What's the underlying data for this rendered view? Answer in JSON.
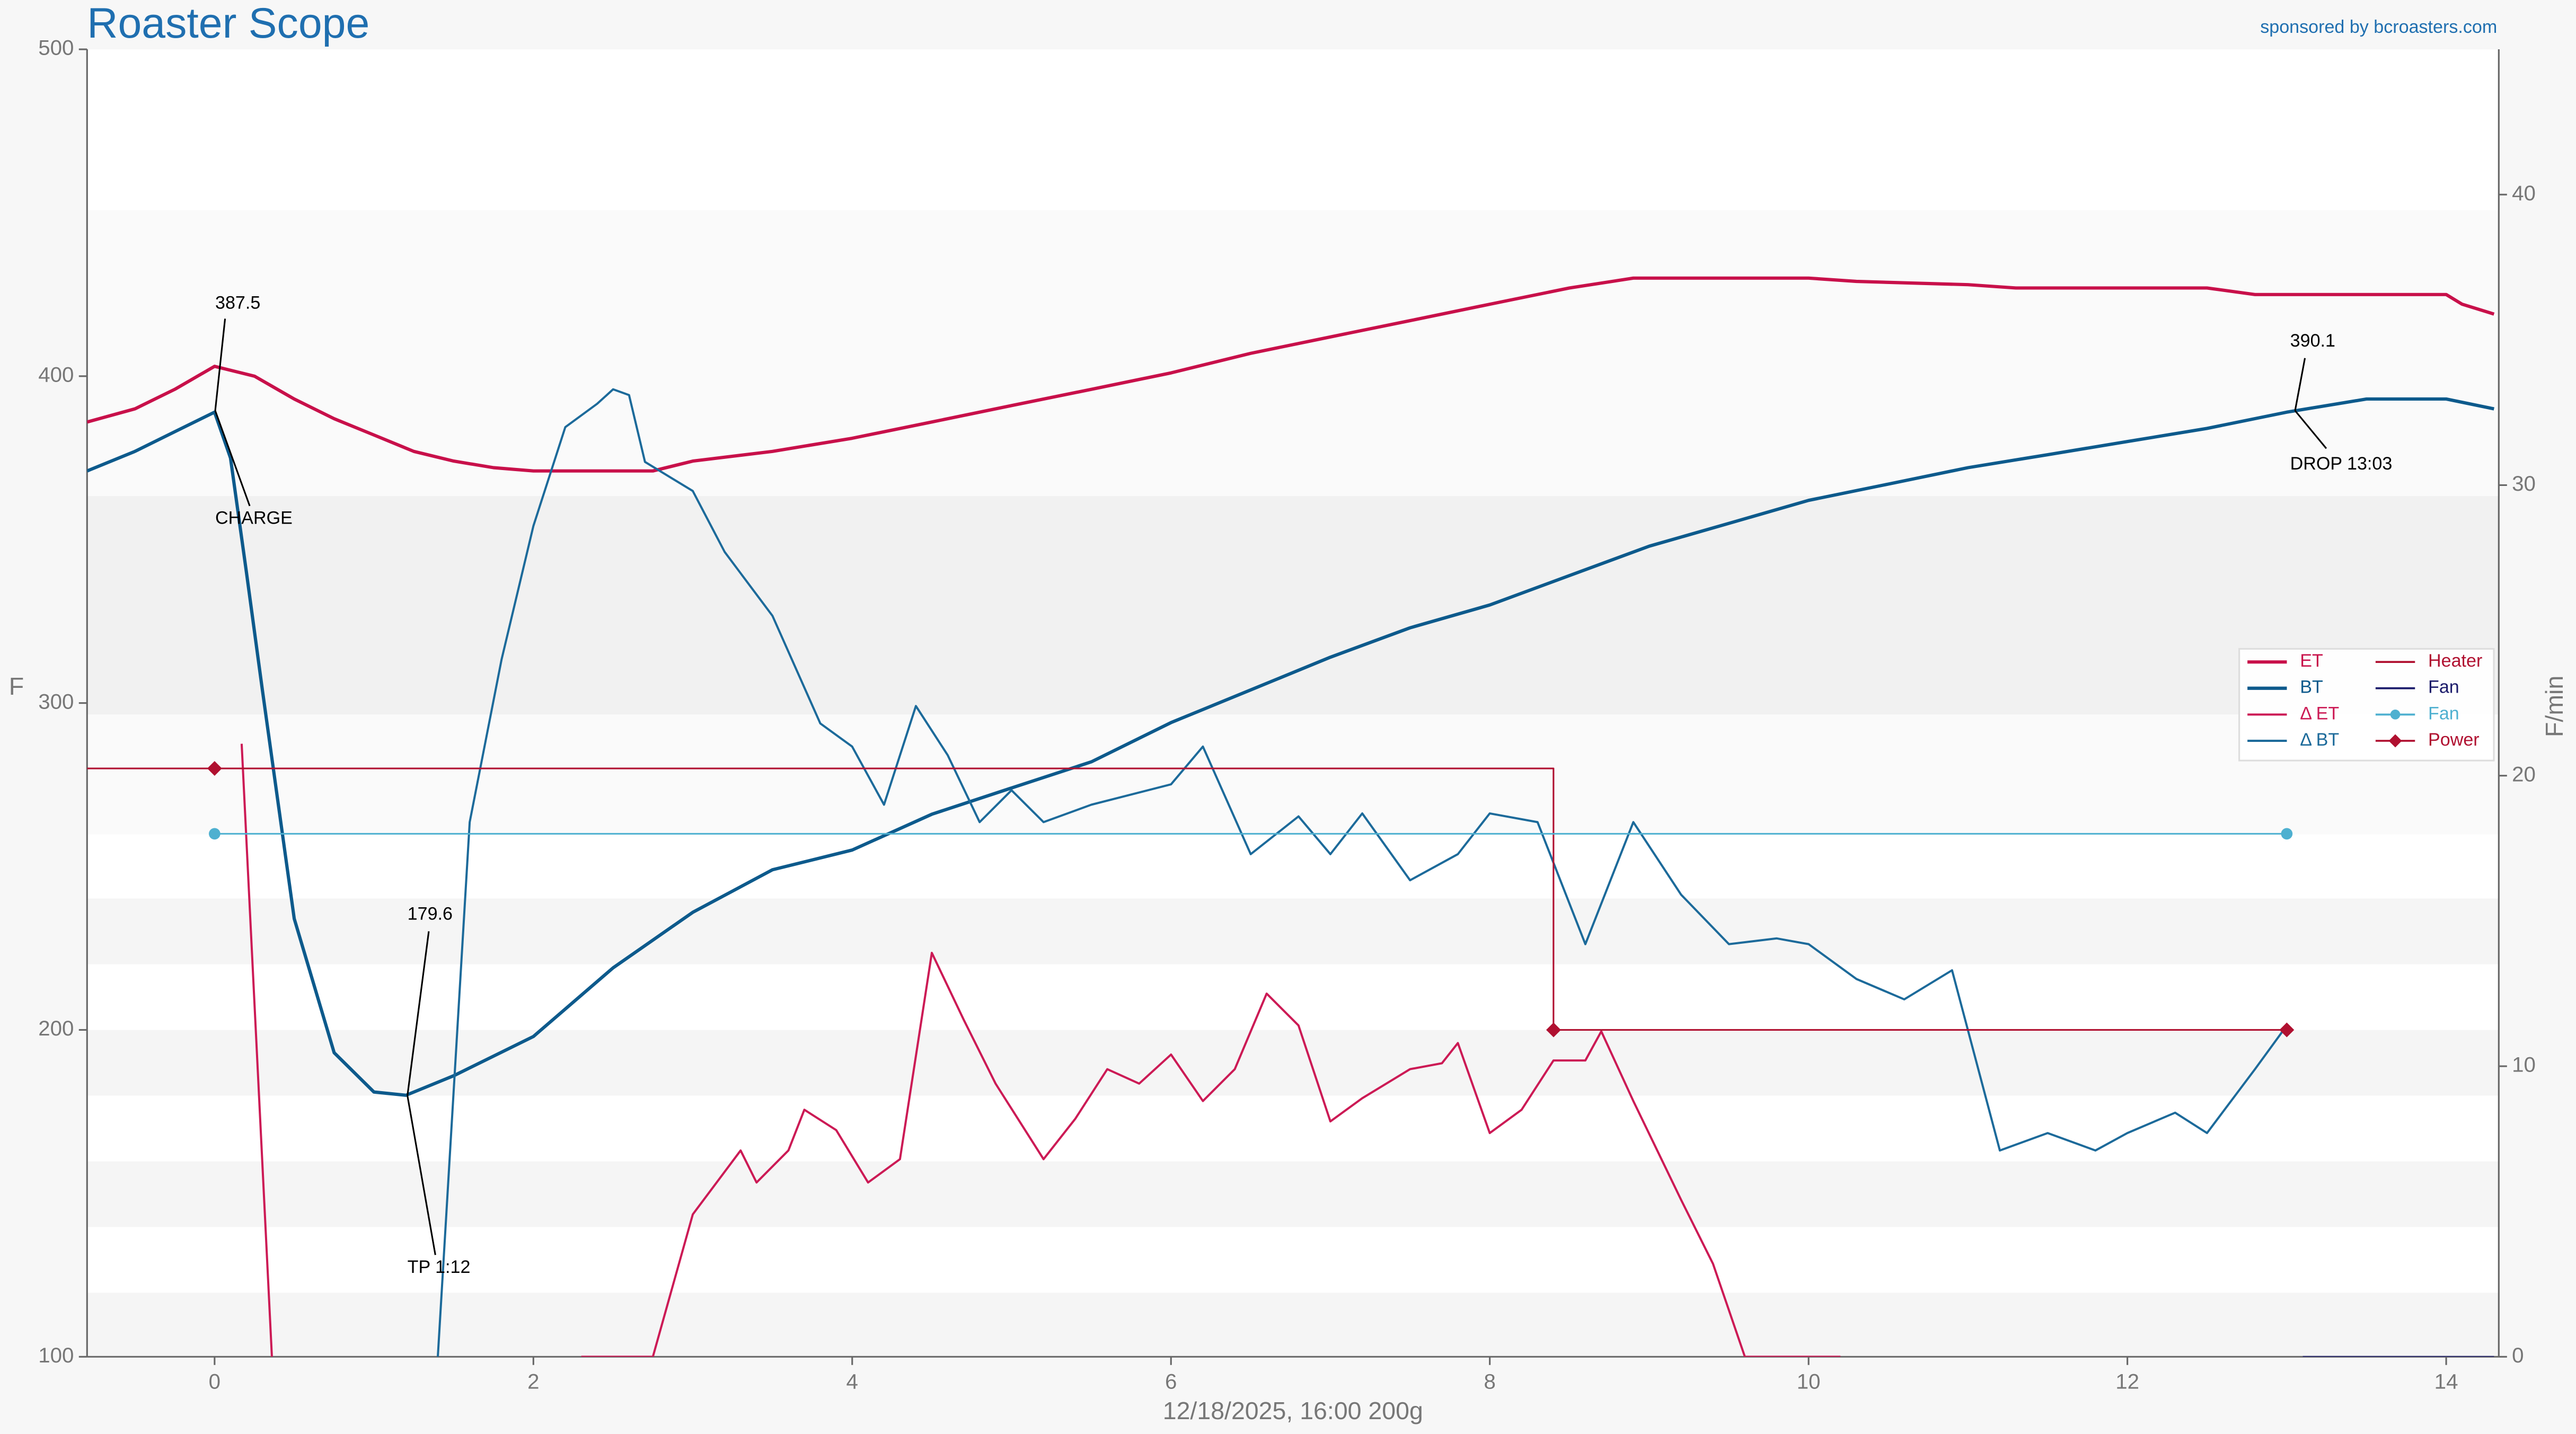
{
  "chart_data": {
    "type": "line",
    "title": "Roaster Scope",
    "subtitle": "sponsored by bcroasters.com",
    "xlabel": "12/18/2025, 16:00   200g",
    "ylabel": "F",
    "y2label": "F/min",
    "xlim": [
      -0.8,
      14.33
    ],
    "xticks": [
      0,
      2,
      4,
      6,
      8,
      10,
      12,
      14
    ],
    "ylim": [
      100,
      500
    ],
    "yticks": [
      100,
      200,
      300,
      400,
      500
    ],
    "y2lim": [
      0,
      45
    ],
    "y2ticks": [
      0,
      10,
      20,
      30,
      40
    ],
    "legend": "right",
    "annotations": [
      "387.5",
      "CHARGE",
      "179.6",
      "TP 1:12",
      "390.1",
      "DROP 13:03"
    ],
    "series": [
      {
        "name": "ET",
        "color": "#c8104a",
        "width": 2,
        "x": [
          -0.8,
          -0.5,
          -0.25,
          0,
          0.25,
          0.5,
          0.75,
          1.0,
          1.25,
          1.5,
          1.75,
          2.0,
          2.75,
          3.0,
          3.5,
          4.0,
          4.5,
          5.0,
          5.5,
          6.0,
          6.5,
          7.0,
          7.5,
          8.0,
          8.5,
          8.9,
          9.5,
          10.0,
          10.3,
          11.0,
          11.3,
          12.0,
          12.5,
          12.8,
          13.5,
          14.0,
          14.1,
          14.3
        ],
        "values": [
          386,
          390,
          396,
          403,
          400,
          393,
          387,
          382,
          377,
          374,
          372,
          371,
          371,
          374,
          377,
          381,
          386,
          391,
          396,
          401,
          407,
          412,
          417,
          422,
          427,
          430,
          430,
          430,
          429,
          428,
          427,
          427,
          427,
          425,
          425,
          425,
          422,
          419
        ]
      },
      {
        "name": "BT",
        "color": "#0d5a8c",
        "width": 2,
        "x": [
          -0.8,
          -0.5,
          -0.25,
          0,
          0.1,
          0.2,
          0.3,
          0.5,
          0.75,
          1.0,
          1.2,
          1.5,
          2.0,
          2.5,
          3.0,
          3.5,
          4.0,
          4.5,
          5.0,
          5.5,
          6.0,
          6.5,
          7.0,
          7.5,
          8.0,
          8.5,
          9.0,
          9.5,
          10.0,
          10.5,
          11.0,
          11.5,
          12.0,
          12.5,
          13.0,
          13.5,
          14.0,
          14.3
        ],
        "values": [
          371,
          377,
          383,
          389,
          375,
          340,
          304,
          234,
          193,
          181,
          180,
          186,
          198,
          219,
          236,
          249,
          255,
          266,
          274,
          282,
          294,
          304,
          314,
          323,
          330,
          339,
          348,
          355,
          362,
          367,
          372,
          376,
          380,
          384,
          389,
          393,
          393,
          390
        ]
      },
      {
        "name": "Δ ET",
        "color": "#cc1a55",
        "width": 1.3,
        "axis": "y2",
        "x": [
          0.17,
          0.36,
          1.0,
          2.3,
          2.75,
          3.0,
          3.3,
          3.4,
          3.6,
          3.7,
          3.9,
          4.1,
          4.3,
          4.5,
          4.7,
          4.9,
          5.2,
          5.4,
          5.6,
          5.8,
          6.0,
          6.2,
          6.4,
          6.6,
          6.8,
          7.0,
          7.2,
          7.5,
          7.7,
          7.8,
          8.0,
          8.2,
          8.4,
          8.6,
          8.7,
          8.9,
          9.2,
          9.4,
          9.6,
          10.2
        ],
        "values": [
          21.1,
          0,
          null,
          0,
          0,
          4.9,
          7.1,
          6,
          7.1,
          8.5,
          7.8,
          6,
          6.8,
          13.9,
          11.6,
          9.4,
          6.8,
          8.2,
          9.9,
          9.4,
          10.4,
          8.8,
          9.9,
          12.5,
          11.4,
          8.1,
          8.9,
          9.9,
          10.1,
          10.8,
          7.7,
          8.5,
          10.2,
          10.2,
          11.2,
          8.8,
          5.4,
          3.2,
          0,
          0
        ]
      },
      {
        "name": "Δ BT",
        "color": "#1c6a9a",
        "width": 1.3,
        "axis": "y2",
        "x": [
          1.4,
          1.6,
          1.8,
          2.0,
          2.2,
          2.4,
          2.5,
          2.6,
          2.7,
          3.0,
          3.2,
          3.5,
          3.8,
          4.0,
          4.2,
          4.4,
          4.6,
          4.8,
          5.0,
          5.2,
          5.5,
          6.0,
          6.2,
          6.5,
          6.8,
          7.0,
          7.2,
          7.5,
          7.8,
          8.0,
          8.3,
          8.6,
          8.9,
          9.2,
          9.5,
          9.8,
          10.0,
          10.3,
          10.6,
          10.9,
          11.2,
          11.5,
          11.8,
          12.0,
          12.3,
          12.5,
          12.8,
          13.0
        ],
        "values": [
          0,
          18.4,
          24,
          28.6,
          32,
          32.8,
          33.3,
          33.1,
          30.8,
          29.8,
          27.7,
          25.5,
          21.8,
          21,
          19,
          22.4,
          20.7,
          18.4,
          19.5,
          18.4,
          19,
          19.7,
          21,
          17.3,
          18.6,
          17.3,
          18.7,
          16.4,
          17.3,
          18.7,
          18.4,
          14.2,
          18.4,
          15.9,
          14.2,
          14.4,
          14.2,
          13,
          12.3,
          13.3,
          7.1,
          7.7,
          7.1,
          7.7,
          8.4,
          7.7,
          9.9,
          11.4
        ]
      },
      {
        "name": "Heater",
        "color": "#b01030",
        "width": 1,
        "x": [
          -0.8,
          8.4,
          8.4,
          13.0
        ],
        "values": [
          280,
          280,
          200,
          200
        ]
      },
      {
        "name": "Fan",
        "color": "#1a1a6a",
        "width": 1,
        "axis": "y2",
        "x": [
          13.1,
          14.3
        ],
        "values": [
          0,
          0
        ]
      },
      {
        "name": "Fan",
        "color": "#4eb0d0",
        "width": 1,
        "marker": "circle",
        "x": [
          0,
          13.0
        ],
        "values": [
          260,
          260
        ]
      },
      {
        "name": "Power",
        "color": "#b01030",
        "width": 1,
        "marker": "diamond",
        "line": false,
        "x": [
          0,
          8.4,
          13.0
        ],
        "values": [
          280,
          200,
          200
        ]
      }
    ]
  }
}
